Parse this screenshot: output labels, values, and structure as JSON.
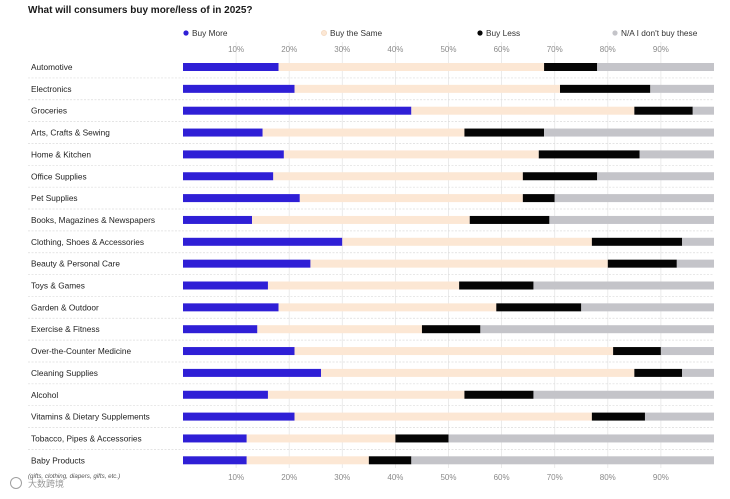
{
  "chart_data": {
    "type": "bar",
    "orientation": "horizontal",
    "stacked": true,
    "title": "What will consumers buy more/less of in 2025?",
    "xlabel": "",
    "ylabel": "",
    "xlim": [
      0,
      100
    ],
    "x_ticks": [
      "10%",
      "20%",
      "30%",
      "40%",
      "50%",
      "60%",
      "70%",
      "80%",
      "90%"
    ],
    "legend_position": "top",
    "categories": [
      "Automotive",
      "Electronics",
      "Groceries",
      "Arts, Crafts & Sewing",
      "Home & Kitchen",
      "Office Supplies",
      "Pet Supplies",
      "Books, Magazines & Newspapers",
      "Clothing, Shoes & Accessories",
      "Beauty & Personal Care",
      "Toys & Games",
      "Garden & Outdoor",
      "Exercise & Fitness",
      "Over-the-Counter Medicine",
      "Cleaning Supplies",
      "Alcohol",
      "Vitamins & Dietary Supplements",
      "Tobacco, Pipes & Accessories",
      "Baby Products"
    ],
    "series": [
      {
        "name": "Buy More",
        "color": "#2f1fd6",
        "values": [
          18,
          21,
          43,
          15,
          19,
          17,
          22,
          13,
          30,
          24,
          16,
          18,
          14,
          21,
          26,
          16,
          21,
          12,
          12
        ]
      },
      {
        "name": "Buy the Same",
        "color": "#fce7d4",
        "values": [
          50,
          50,
          42,
          38,
          48,
          47,
          42,
          41,
          47,
          56,
          36,
          41,
          31,
          60,
          59,
          37,
          56,
          28,
          23
        ]
      },
      {
        "name": "Buy Less",
        "color": "#050505",
        "values": [
          10,
          17,
          11,
          15,
          19,
          14,
          6,
          15,
          17,
          13,
          14,
          16,
          11,
          9,
          9,
          13,
          10,
          10,
          8
        ]
      },
      {
        "name": "N/A I don't buy these",
        "color": "#c4c4c9",
        "values": [
          22,
          12,
          4,
          32,
          14,
          22,
          30,
          31,
          6,
          7,
          34,
          25,
          44,
          10,
          6,
          34,
          13,
          50,
          57
        ]
      }
    ],
    "footnote": "(gifts, clothing, diapers, gifts, etc.)",
    "watermark": "大数跨境"
  }
}
